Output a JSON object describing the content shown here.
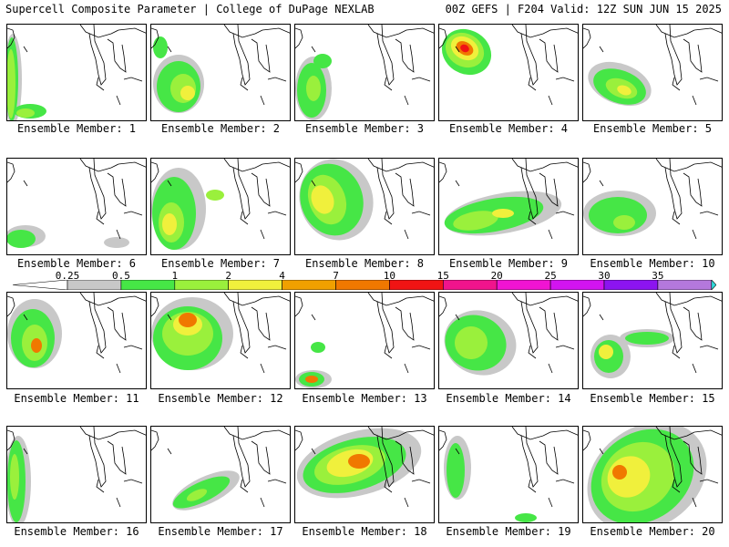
{
  "header": {
    "left_title": "Supercell Composite Parameter | College of DuPage NEXLAB",
    "right_title": "00Z GEFS | F204 Valid: 12Z SUN JUN 15 2025"
  },
  "colorbar": {
    "labels": [
      "0.25",
      "0.5",
      "1",
      "2",
      "4",
      "7",
      "10",
      "15",
      "20",
      "25",
      "30",
      "35"
    ],
    "colors": [
      "#c8c8c8",
      "#46e646",
      "#9af03c",
      "#f0f03c",
      "#f0a000",
      "#f07800",
      "#f01414",
      "#f0148c",
      "#f014d2",
      "#d214f0",
      "#8c14f0",
      "#b478dc",
      "#32dcdc"
    ]
  },
  "members": [
    {
      "label": "Ensemble Member: 1"
    },
    {
      "label": "Ensemble Member: 2"
    },
    {
      "label": "Ensemble Member: 3"
    },
    {
      "label": "Ensemble Member: 4"
    },
    {
      "label": "Ensemble Member: 5"
    },
    {
      "label": "Ensemble Member: 6"
    },
    {
      "label": "Ensemble Member: 7"
    },
    {
      "label": "Ensemble Member: 8"
    },
    {
      "label": "Ensemble Member: 9"
    },
    {
      "label": "Ensemble Member: 10"
    },
    {
      "label": "Ensemble Member: 11"
    },
    {
      "label": "Ensemble Member: 12"
    },
    {
      "label": "Ensemble Member: 13"
    },
    {
      "label": "Ensemble Member: 14"
    },
    {
      "label": "Ensemble Member: 15"
    },
    {
      "label": "Ensemble Member: 16"
    },
    {
      "label": "Ensemble Member: 17"
    },
    {
      "label": "Ensemble Member: 18"
    },
    {
      "label": "Ensemble Member: 19"
    },
    {
      "label": "Ensemble Member: 20"
    }
  ]
}
